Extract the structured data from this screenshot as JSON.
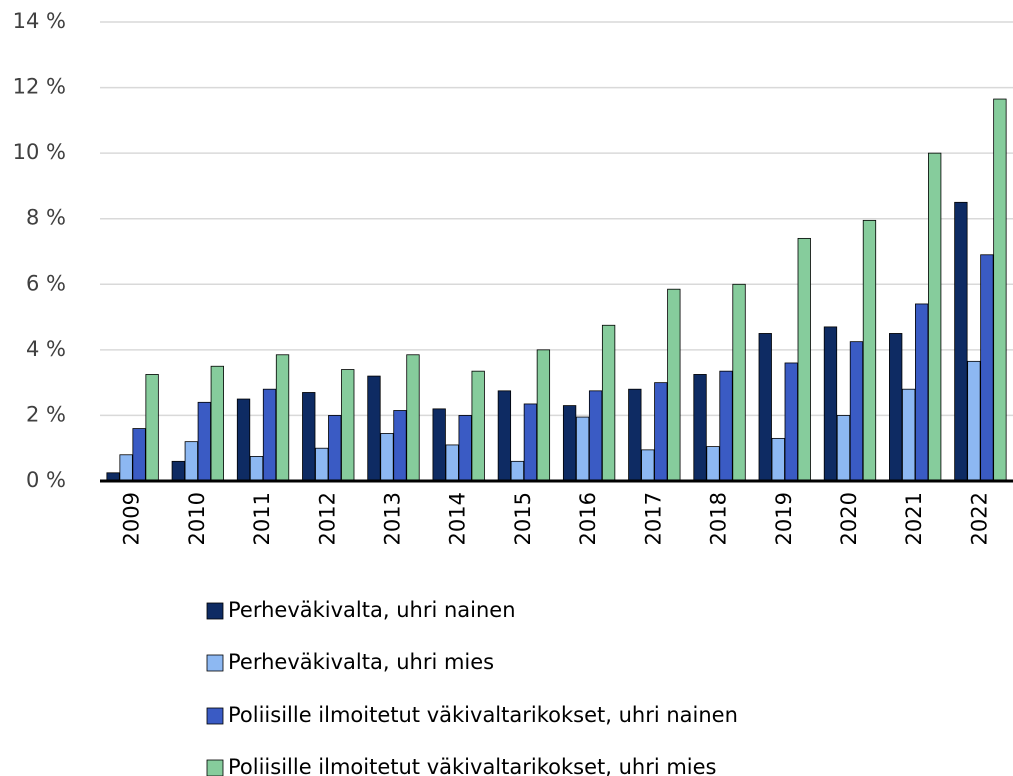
{
  "chart_data": {
    "type": "bar",
    "categories": [
      "2009",
      "2010",
      "2011",
      "2012",
      "2013",
      "2014",
      "2015",
      "2016",
      "2017",
      "2018",
      "2019",
      "2020",
      "2021",
      "2022"
    ],
    "series": [
      {
        "name": "Perheväkivalta, uhri nainen",
        "color": "#0e2b63",
        "values": [
          0.25,
          0.6,
          2.5,
          2.7,
          3.2,
          2.2,
          2.75,
          2.3,
          2.8,
          3.25,
          4.5,
          4.7,
          4.5,
          8.5
        ]
      },
      {
        "name": "Perheväkivalta, uhri mies",
        "color": "#8db8f2",
        "values": [
          0.8,
          1.2,
          0.75,
          1.0,
          1.45,
          1.1,
          0.6,
          1.95,
          0.95,
          1.05,
          1.3,
          2.0,
          2.8,
          3.65
        ]
      },
      {
        "name": "Poliisille ilmoitetut väkivaltarikokset, uhri nainen",
        "color": "#3a5bc4",
        "values": [
          1.6,
          2.4,
          2.8,
          2.0,
          2.15,
          2.0,
          2.35,
          2.75,
          3.0,
          3.35,
          3.6,
          4.25,
          5.4,
          6.9
        ]
      },
      {
        "name": "Poliisille ilmoitetut väkivaltarikokset, uhri mies",
        "color": "#86cc9c",
        "values": [
          3.25,
          3.5,
          3.85,
          3.4,
          3.85,
          3.35,
          4.0,
          4.75,
          5.85,
          6.0,
          7.4,
          7.95,
          10.0,
          11.65
        ]
      }
    ],
    "ylim": [
      0,
      14
    ],
    "yticks": [
      {
        "value": 0,
        "label": "0 %"
      },
      {
        "value": 2,
        "label": "2 %"
      },
      {
        "value": 4,
        "label": "4 %"
      },
      {
        "value": 6,
        "label": "6 %"
      },
      {
        "value": 8,
        "label": "8 %"
      },
      {
        "value": 10,
        "label": "10 %"
      },
      {
        "value": 12,
        "label": "12 %"
      },
      {
        "value": 14,
        "label": "14 %"
      }
    ],
    "grid": true
  }
}
